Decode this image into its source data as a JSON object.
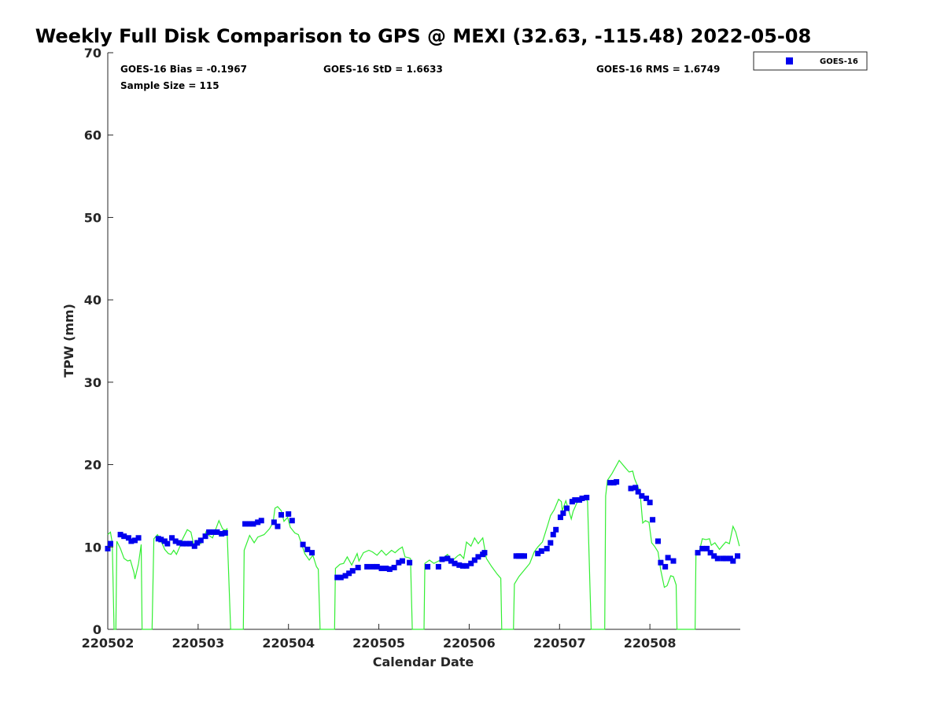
{
  "chart_data": {
    "type": "scatter",
    "title": "Weekly Full Disk Comparison to GPS @ MEXI (32.63, -115.48) 2022-05-08",
    "xlabel": "Calendar Date",
    "ylabel": "TPW (mm)",
    "xlim": [
      0,
      7
    ],
    "ylim": [
      0,
      70
    ],
    "x_unit": "days since 220502",
    "xticks": [
      0,
      1,
      2,
      3,
      4,
      5,
      6
    ],
    "xtick_labels": [
      "220502",
      "220503",
      "220504",
      "220505",
      "220506",
      "220507",
      "220508"
    ],
    "yticks": [
      0,
      10,
      20,
      30,
      40,
      50,
      60,
      70
    ],
    "ytick_labels": [
      "0",
      "10",
      "20",
      "30",
      "40",
      "50",
      "60",
      "70"
    ],
    "grid": false,
    "legend": {
      "placement": "top-right outside",
      "entries": [
        "GOES-16"
      ]
    },
    "annotations": {
      "bias": "GOES-16 Bias = -0.1967",
      "std": "GOES-16 StD = 1.6633",
      "rms": "GOES-16 RMS = 1.6749",
      "sample": "Sample Size = 115"
    },
    "colors": {
      "goes": "#0000ee",
      "gps": "#33ee33"
    },
    "series": [
      {
        "name": "GOES-16",
        "type": "scatter",
        "points": [
          [
            0.0,
            9.8
          ],
          [
            0.03,
            10.4
          ],
          [
            0.14,
            11.5
          ],
          [
            0.18,
            11.3
          ],
          [
            0.23,
            11.1
          ],
          [
            0.26,
            10.7
          ],
          [
            0.3,
            10.8
          ],
          [
            0.34,
            11.1
          ],
          [
            0.56,
            11.0
          ],
          [
            0.59,
            10.9
          ],
          [
            0.63,
            10.7
          ],
          [
            0.66,
            10.4
          ],
          [
            0.71,
            11.1
          ],
          [
            0.75,
            10.7
          ],
          [
            0.79,
            10.5
          ],
          [
            0.83,
            10.4
          ],
          [
            0.87,
            10.4
          ],
          [
            0.91,
            10.4
          ],
          [
            0.96,
            10.1
          ],
          [
            0.99,
            10.5
          ],
          [
            1.03,
            10.8
          ],
          [
            1.08,
            11.3
          ],
          [
            1.12,
            11.8
          ],
          [
            1.17,
            11.8
          ],
          [
            1.21,
            11.8
          ],
          [
            1.26,
            11.6
          ],
          [
            1.3,
            11.7
          ],
          [
            1.52,
            12.8
          ],
          [
            1.57,
            12.8
          ],
          [
            1.61,
            12.8
          ],
          [
            1.66,
            13.0
          ],
          [
            1.7,
            13.2
          ],
          [
            1.84,
            13.0
          ],
          [
            1.88,
            12.5
          ],
          [
            1.92,
            13.9
          ],
          [
            2.0,
            14.0
          ],
          [
            2.04,
            13.2
          ],
          [
            2.16,
            10.3
          ],
          [
            2.21,
            9.7
          ],
          [
            2.26,
            9.3
          ],
          [
            2.54,
            6.3
          ],
          [
            2.58,
            6.3
          ],
          [
            2.63,
            6.5
          ],
          [
            2.67,
            6.8
          ],
          [
            2.71,
            7.1
          ],
          [
            2.77,
            7.5
          ],
          [
            2.87,
            7.6
          ],
          [
            2.93,
            7.6
          ],
          [
            2.98,
            7.6
          ],
          [
            3.03,
            7.4
          ],
          [
            3.08,
            7.4
          ],
          [
            3.12,
            7.3
          ],
          [
            3.17,
            7.5
          ],
          [
            3.22,
            8.1
          ],
          [
            3.26,
            8.3
          ],
          [
            3.34,
            8.1
          ],
          [
            3.54,
            7.6
          ],
          [
            3.66,
            7.6
          ],
          [
            3.7,
            8.5
          ],
          [
            3.76,
            8.6
          ],
          [
            3.8,
            8.3
          ],
          [
            3.84,
            8.0
          ],
          [
            3.89,
            7.8
          ],
          [
            3.93,
            7.7
          ],
          [
            3.97,
            7.7
          ],
          [
            4.02,
            8.0
          ],
          [
            4.06,
            8.4
          ],
          [
            4.1,
            8.8
          ],
          [
            4.15,
            9.1
          ],
          [
            4.17,
            9.3
          ],
          [
            4.52,
            8.9
          ],
          [
            4.55,
            8.9
          ],
          [
            4.58,
            8.9
          ],
          [
            4.61,
            8.9
          ],
          [
            4.76,
            9.2
          ],
          [
            4.8,
            9.5
          ],
          [
            4.86,
            9.8
          ],
          [
            4.9,
            10.5
          ],
          [
            4.93,
            11.5
          ],
          [
            4.96,
            12.1
          ],
          [
            5.01,
            13.6
          ],
          [
            5.04,
            14.1
          ],
          [
            5.08,
            14.7
          ],
          [
            5.14,
            15.5
          ],
          [
            5.17,
            15.7
          ],
          [
            5.22,
            15.7
          ],
          [
            5.25,
            15.9
          ],
          [
            5.3,
            16.0
          ],
          [
            5.56,
            17.8
          ],
          [
            5.6,
            17.8
          ],
          [
            5.63,
            17.9
          ],
          [
            5.79,
            17.1
          ],
          [
            5.84,
            17.2
          ],
          [
            5.87,
            16.7
          ],
          [
            5.91,
            16.2
          ],
          [
            5.96,
            15.9
          ],
          [
            6.0,
            15.4
          ],
          [
            6.03,
            13.3
          ],
          [
            6.09,
            10.7
          ],
          [
            6.12,
            8.1
          ],
          [
            6.17,
            7.6
          ],
          [
            6.2,
            8.7
          ],
          [
            6.26,
            8.3
          ],
          [
            6.53,
            9.3
          ],
          [
            6.58,
            9.8
          ],
          [
            6.63,
            9.8
          ],
          [
            6.67,
            9.3
          ],
          [
            6.71,
            8.9
          ],
          [
            6.75,
            8.6
          ],
          [
            6.81,
            8.6
          ],
          [
            6.84,
            8.6
          ],
          [
            6.89,
            8.6
          ],
          [
            6.92,
            8.3
          ],
          [
            6.97,
            8.9
          ]
        ]
      },
      {
        "name": "GPS",
        "type": "line",
        "points": [
          [
            0,
            11.5
          ],
          [
            0.03,
            11.8
          ],
          [
            0.05,
            10.5
          ],
          [
            0.07,
            0
          ],
          [
            0.09,
            0
          ],
          [
            0.1,
            10.7
          ],
          [
            0.14,
            9.8
          ],
          [
            0.18,
            8.6
          ],
          [
            0.22,
            8.3
          ],
          [
            0.25,
            8.4
          ],
          [
            0.29,
            6.9
          ],
          [
            0.3,
            6.1
          ],
          [
            0.34,
            8.0
          ],
          [
            0.37,
            10.3
          ],
          [
            0.38,
            0
          ],
          [
            0.49,
            0
          ],
          [
            0.51,
            11.0
          ],
          [
            0.55,
            11.5
          ],
          [
            0.59,
            10.7
          ],
          [
            0.63,
            9.7
          ],
          [
            0.67,
            9.2
          ],
          [
            0.7,
            9.1
          ],
          [
            0.73,
            9.6
          ],
          [
            0.76,
            9.1
          ],
          [
            0.8,
            10.1
          ],
          [
            0.83,
            11.0
          ],
          [
            0.88,
            12.1
          ],
          [
            0.92,
            11.8
          ],
          [
            0.96,
            9.8
          ],
          [
            0.98,
            10.8
          ],
          [
            1.03,
            10.4
          ],
          [
            1.09,
            11.9
          ],
          [
            1.12,
            11.4
          ],
          [
            1.16,
            11.1
          ],
          [
            1.2,
            12.3
          ],
          [
            1.23,
            13.2
          ],
          [
            1.27,
            12.2
          ],
          [
            1.3,
            12.0
          ],
          [
            1.32,
            12.2
          ],
          [
            1.36,
            0
          ],
          [
            1.5,
            0
          ],
          [
            1.51,
            9.6
          ],
          [
            1.57,
            11.4
          ],
          [
            1.62,
            10.5
          ],
          [
            1.66,
            11.2
          ],
          [
            1.73,
            11.5
          ],
          [
            1.79,
            12.2
          ],
          [
            1.83,
            13.0
          ],
          [
            1.85,
            14.7
          ],
          [
            1.88,
            14.9
          ],
          [
            1.92,
            14.4
          ],
          [
            1.95,
            13.1
          ],
          [
            1.99,
            13.6
          ],
          [
            2.02,
            12.4
          ],
          [
            2.07,
            11.7
          ],
          [
            2.11,
            11.5
          ],
          [
            2.18,
            9.2
          ],
          [
            2.23,
            8.4
          ],
          [
            2.27,
            9.0
          ],
          [
            2.31,
            7.6
          ],
          [
            2.33,
            7.3
          ],
          [
            2.35,
            0
          ],
          [
            2.51,
            0
          ],
          [
            2.52,
            7.4
          ],
          [
            2.57,
            7.9
          ],
          [
            2.61,
            8.0
          ],
          [
            2.65,
            8.8
          ],
          [
            2.7,
            7.8
          ],
          [
            2.76,
            9.2
          ],
          [
            2.78,
            8.3
          ],
          [
            2.83,
            9.3
          ],
          [
            2.89,
            9.6
          ],
          [
            2.93,
            9.4
          ],
          [
            2.98,
            9.0
          ],
          [
            3.03,
            9.6
          ],
          [
            3.08,
            9.0
          ],
          [
            3.14,
            9.6
          ],
          [
            3.18,
            9.3
          ],
          [
            3.22,
            9.7
          ],
          [
            3.26,
            10.0
          ],
          [
            3.29,
            8.8
          ],
          [
            3.33,
            8.7
          ],
          [
            3.35,
            8.6
          ],
          [
            3.37,
            0
          ],
          [
            3.5,
            0
          ],
          [
            3.51,
            8.0
          ],
          [
            3.56,
            8.4
          ],
          [
            3.61,
            8.0
          ],
          [
            3.68,
            8.4
          ],
          [
            3.76,
            9.1
          ],
          [
            3.81,
            8.3
          ],
          [
            3.87,
            8.9
          ],
          [
            3.9,
            9.1
          ],
          [
            3.94,
            8.6
          ],
          [
            3.97,
            10.6
          ],
          [
            4.02,
            10.1
          ],
          [
            4.06,
            11.1
          ],
          [
            4.1,
            10.4
          ],
          [
            4.15,
            11.1
          ],
          [
            4.19,
            8.6
          ],
          [
            4.25,
            7.6
          ],
          [
            4.31,
            6.7
          ],
          [
            4.35,
            6.2
          ],
          [
            4.36,
            0
          ],
          [
            4.49,
            0
          ],
          [
            4.5,
            5.5
          ],
          [
            4.55,
            6.4
          ],
          [
            4.61,
            7.2
          ],
          [
            4.67,
            8.0
          ],
          [
            4.72,
            9.4
          ],
          [
            4.76,
            10.0
          ],
          [
            4.81,
            10.6
          ],
          [
            4.83,
            11.3
          ],
          [
            4.87,
            12.7
          ],
          [
            4.9,
            13.8
          ],
          [
            4.94,
            14.5
          ],
          [
            4.99,
            15.8
          ],
          [
            5.02,
            15.5
          ],
          [
            5.03,
            14.4
          ],
          [
            5.07,
            15.6
          ],
          [
            5.13,
            13.4
          ],
          [
            5.15,
            14.3
          ],
          [
            5.19,
            15.3
          ],
          [
            5.23,
            15.9
          ],
          [
            5.28,
            16.2
          ],
          [
            5.31,
            15.5
          ],
          [
            5.35,
            0
          ],
          [
            5.5,
            0
          ],
          [
            5.51,
            16.2
          ],
          [
            5.53,
            18.1
          ],
          [
            5.58,
            18.9
          ],
          [
            5.66,
            20.5
          ],
          [
            5.73,
            19.6
          ],
          [
            5.77,
            19.1
          ],
          [
            5.81,
            19.2
          ],
          [
            5.83,
            18.3
          ],
          [
            5.89,
            16.7
          ],
          [
            5.92,
            12.9
          ],
          [
            5.95,
            13.2
          ],
          [
            5.99,
            13.0
          ],
          [
            6.02,
            10.5
          ],
          [
            6.05,
            10.1
          ],
          [
            6.09,
            9.4
          ],
          [
            6.12,
            7.2
          ],
          [
            6.16,
            5.1
          ],
          [
            6.19,
            5.3
          ],
          [
            6.23,
            6.5
          ],
          [
            6.26,
            6.4
          ],
          [
            6.29,
            5.4
          ],
          [
            6.3,
            0
          ],
          [
            6.5,
            0
          ],
          [
            6.51,
            9.3
          ],
          [
            6.55,
            9.6
          ],
          [
            6.58,
            11.0
          ],
          [
            6.62,
            10.9
          ],
          [
            6.66,
            11.0
          ],
          [
            6.68,
            10.2
          ],
          [
            6.72,
            10.5
          ],
          [
            6.77,
            9.7
          ],
          [
            6.8,
            10.1
          ],
          [
            6.84,
            10.6
          ],
          [
            6.88,
            10.4
          ],
          [
            6.92,
            12.5
          ],
          [
            6.95,
            11.8
          ],
          [
            6.99,
            10.1
          ]
        ]
      }
    ]
  }
}
